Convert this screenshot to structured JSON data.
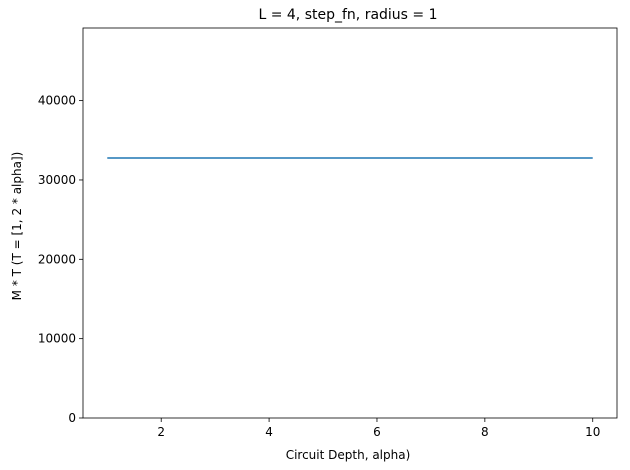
{
  "chart_data": {
    "type": "line",
    "title": "L = 4, step_fn, radius = 1",
    "xlabel": "Circuit Depth, alpha)",
    "ylabel": "M * T (T = [1, 2 * alpha])",
    "xlim": [
      0.55,
      10.45
    ],
    "ylim": [
      0,
      49152
    ],
    "xticks": [
      2,
      4,
      6,
      8,
      10
    ],
    "yticks": [
      0,
      10000,
      20000,
      30000,
      40000
    ],
    "grid": false,
    "series": [
      {
        "color": "#1f77b4",
        "x": [
          1,
          2,
          3,
          4,
          5,
          6,
          7,
          8,
          9,
          10
        ],
        "y": [
          32768,
          32768,
          32768,
          32768,
          32768,
          32768,
          32768,
          32768,
          32768,
          32768
        ]
      }
    ]
  }
}
